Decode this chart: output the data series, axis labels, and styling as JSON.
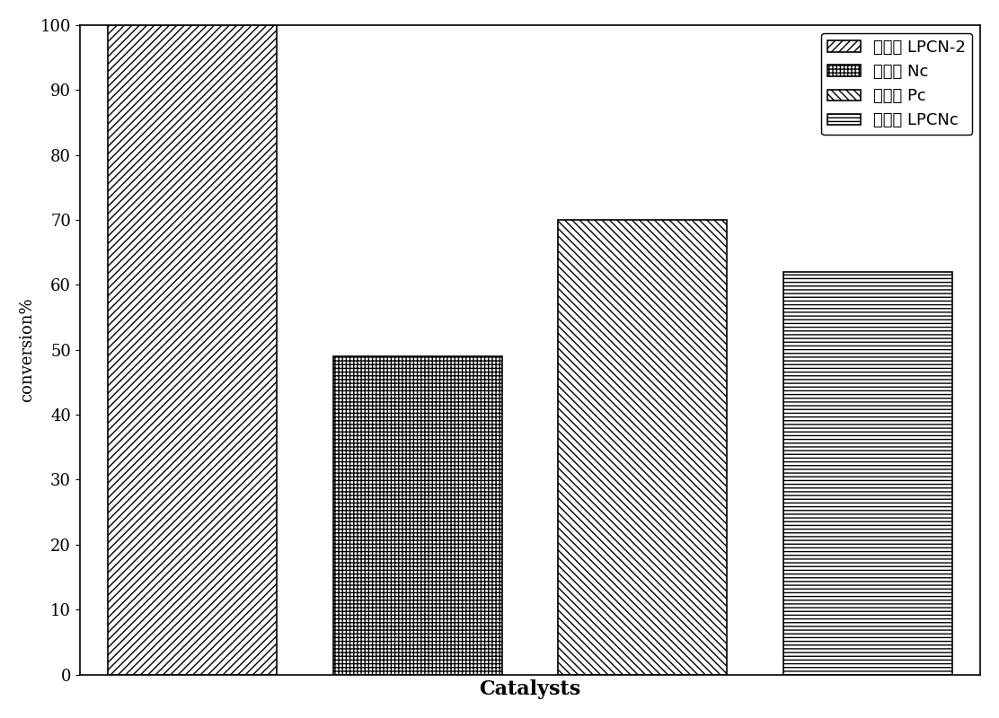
{
  "categories": [
    "LPCN-2",
    "Nc",
    "Pc",
    "LPCNc"
  ],
  "values": [
    100,
    49,
    70,
    62
  ],
  "labels": [
    "催化剂 LPCN-2",
    "催化剂 Nc",
    "催化剂 Pc",
    "催化剂 LPCNc"
  ],
  "hatches": [
    "////",
    "++++",
    "\\\\\\\\",
    "----"
  ],
  "facecolors": [
    "white",
    "white",
    "white",
    "white"
  ],
  "edgecolors": [
    "black",
    "black",
    "black",
    "black"
  ],
  "ylabel": "conversion%",
  "xlabel": "Catalysts",
  "ylim": [
    0,
    100
  ],
  "yticks": [
    0,
    10,
    20,
    30,
    40,
    50,
    60,
    70,
    80,
    90,
    100
  ],
  "bar_positions": [
    1,
    2,
    3,
    4
  ],
  "bar_width": 0.75,
  "legend_fontsize": 13,
  "ylabel_fontsize": 13,
  "xlabel_fontsize": 16,
  "tick_fontsize": 13,
  "background_color": "#ffffff"
}
